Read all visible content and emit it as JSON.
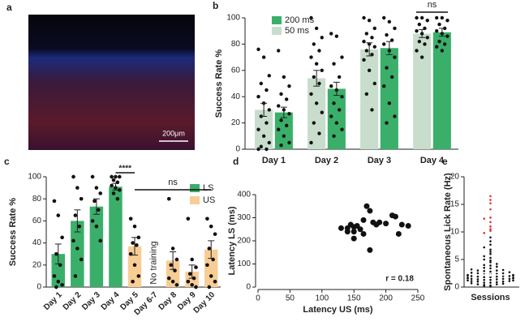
{
  "image_panel": {
    "panel_label": "a",
    "scale_bar": "200μm"
  },
  "chart_data": [
    {
      "type": "bar",
      "panel_label": "b",
      "ylabel": "Success Rate %",
      "categories": [
        "Day 1",
        "Day 2",
        "Day 3",
        "Day 4"
      ],
      "series": [
        {
          "name": "50 ms",
          "color": "#c8ddcc",
          "values": [
            30,
            54,
            76,
            88
          ],
          "errors": [
            5,
            6,
            5,
            3
          ],
          "points": [
            [
              76,
              70,
              56,
              50,
              45,
              40,
              35,
              30,
              25,
              20,
              15,
              10,
              5,
              2,
              0,
              0
            ],
            [
              100,
              92,
              85,
              80,
              75,
              70,
              65,
              60,
              55,
              50,
              42,
              35,
              28,
              20,
              12,
              5
            ],
            [
              100,
              98,
              92,
              88,
              85,
              82,
              80,
              78,
              75,
              72,
              68,
              60,
              50,
              42,
              30
            ],
            [
              100,
              100,
              98,
              95,
              92,
              90,
              88,
              85,
              82,
              80,
              75,
              70
            ]
          ]
        },
        {
          "name": "200 ms",
          "color": "#3aaf6a",
          "values": [
            28,
            46,
            77,
            89
          ],
          "errors": [
            4,
            5,
            5,
            3
          ],
          "points": [
            [
              75,
              55,
              48,
              42,
              38,
              33,
              30,
              27,
              22,
              18,
              15,
              10,
              5,
              3
            ],
            [
              88,
              86,
              70,
              65,
              55,
              48,
              45,
              40,
              35,
              30,
              25,
              20,
              15,
              10
            ],
            [
              100,
              97,
              92,
              87,
              83,
              80,
              75,
              70,
              62,
              55,
              48,
              35,
              25,
              20
            ],
            [
              100,
              100,
              98,
              95,
              92,
              90,
              88,
              86,
              82,
              80,
              78,
              75
            ]
          ]
        }
      ],
      "ylim": [
        0,
        100
      ],
      "yticks": [
        0,
        20,
        40,
        60,
        80,
        100
      ],
      "annotations": [
        "ns"
      ]
    },
    {
      "type": "bar",
      "panel_label": "c",
      "ylabel": "Success Rate %",
      "categories": [
        "Day 1",
        "Day 2",
        "Day 3",
        "Day 4",
        "Day 5",
        "Day 6-7",
        "Day 8",
        "Day 9",
        "Day 10"
      ],
      "series": [
        {
          "name": "LS",
          "color": "#3aaf6a",
          "values": [
            30,
            60,
            73,
            91,
            null,
            null,
            null,
            null,
            null
          ],
          "errors": [
            9,
            10,
            7,
            3,
            null,
            null,
            null,
            null,
            null
          ],
          "points": [
            [
              78,
              65,
              45,
              30,
              20,
              10,
              5,
              2,
              0
            ],
            [
              100,
              90,
              80,
              65,
              55,
              42,
              35,
              25,
              10
            ],
            [
              100,
              90,
              85,
              78,
              70,
              60,
              55,
              42
            ],
            [
              100,
              100,
              100,
              97,
              95,
              92,
              90,
              88,
              85,
              80
            ],
            [],
            [],
            [],
            [],
            []
          ]
        },
        {
          "name": "US",
          "color": "#f8cd94",
          "values": [
            null,
            null,
            null,
            null,
            37,
            null,
            24,
            14,
            34
          ],
          "errors": [
            null,
            null,
            null,
            null,
            8,
            null,
            8,
            6,
            8
          ],
          "points": [
            [],
            [],
            [],
            [],
            [
              62,
              55,
              45,
              40,
              38,
              30,
              20,
              10,
              5
            ],
            [],
            [
              80,
              35,
              25,
              20,
              15,
              8,
              5,
              2
            ],
            [
              62,
              25,
              18,
              12,
              8,
              5,
              2,
              0
            ],
            [
              62,
              55,
              48,
              35,
              25,
              20,
              10,
              5,
              0
            ]
          ]
        }
      ],
      "ylim": [
        0,
        100
      ],
      "yticks": [
        0,
        20,
        40,
        60,
        80,
        100
      ],
      "annotations": [
        "****",
        "ns",
        "No training"
      ]
    },
    {
      "type": "scatter",
      "panel_label": "d",
      "xlabel": "Latency US (ms)",
      "ylabel": "Latency LS (ms)",
      "color": "#111",
      "x": [
        130,
        140,
        145,
        150,
        155,
        150,
        160,
        165,
        170,
        175,
        180,
        185,
        175,
        165,
        190,
        200,
        210,
        215,
        220,
        225,
        235,
        150,
        140
      ],
      "y": [
        255,
        255,
        270,
        240,
        265,
        210,
        250,
        290,
        350,
        330,
        280,
        270,
        160,
        230,
        280,
        275,
        310,
        305,
        230,
        270,
        265,
        260,
        240
      ],
      "xlim": [
        0,
        250
      ],
      "xticks": [
        0,
        50,
        100,
        150,
        200,
        250
      ],
      "ylim": [
        0,
        400
      ],
      "yticks": [
        0,
        100,
        200,
        300,
        400
      ],
      "annotations": [
        "r = 0.18"
      ]
    },
    {
      "type": "swarm",
      "panel_label": "e",
      "xlabel": "Sessions",
      "ylabel": "Spontaneous Lick Rate (Hz)",
      "series": [
        {
          "color": "#111",
          "values": [
            0.1,
            0.2,
            0.3,
            0.4,
            0.5,
            0.5,
            0.6,
            0.7,
            0.8,
            0.8,
            0.9,
            1,
            1,
            1.1,
            1.1,
            1.2,
            1.2,
            1.3,
            1.3,
            1.4,
            1.4,
            1.5,
            1.5,
            1.5,
            1.6,
            1.6,
            1.7,
            1.7,
            1.8,
            1.8,
            1.9,
            1.9,
            2,
            2,
            2,
            2.1,
            2.1,
            2.2,
            2.2,
            2.3,
            2.3,
            2.4,
            2.5,
            2.5,
            2.6,
            2.7,
            2.8,
            2.9,
            3,
            3,
            3.1,
            3.2,
            3.4,
            3.5,
            3.7,
            3.9,
            4,
            4.2,
            4.5,
            4.8,
            5,
            5.3,
            5.6,
            6,
            6.4,
            6.8,
            7.2,
            7.7,
            8.3,
            9
          ]
        },
        {
          "color": "#e03030",
          "values": [
            16.5,
            15.8,
            15.2,
            14.1,
            12.6,
            12.4,
            11.8,
            11,
            10.5,
            10.2,
            9.8
          ]
        }
      ],
      "mean": 2.2,
      "error": 0.3,
      "ylim": [
        0,
        20
      ],
      "yticks": [
        0,
        5,
        10,
        15,
        20
      ]
    }
  ]
}
